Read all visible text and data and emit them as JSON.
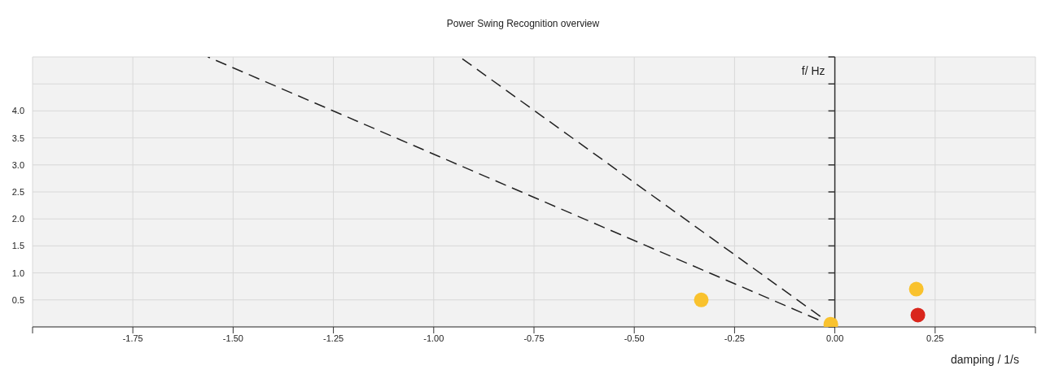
{
  "chart_data": {
    "type": "scatter",
    "title": "Power Swing Recognition overview",
    "xlabel": "damping / 1/s",
    "ylabel": "f/ Hz",
    "xlim": [
      -2,
      0.5
    ],
    "ylim": [
      0,
      5
    ],
    "xticks": [
      {
        "value": -2,
        "label": null
      },
      {
        "value": -1.75,
        "label": "-1.75"
      },
      {
        "value": -1.5,
        "label": "-1.50"
      },
      {
        "value": -1.25,
        "label": "-1.25"
      },
      {
        "value": -1,
        "label": "-1.00"
      },
      {
        "value": -0.75,
        "label": "-0.75"
      },
      {
        "value": -0.5,
        "label": "-0.50"
      },
      {
        "value": -0.25,
        "label": "-0.25"
      },
      {
        "value": 0,
        "label": "0.00"
      },
      {
        "value": 0.25,
        "label": "0.25"
      },
      {
        "value": 0.5,
        "label": null
      }
    ],
    "yticks": [
      {
        "value": 0,
        "label": null
      },
      0.5,
      {
        "value": 1,
        "label": "1.0"
      },
      1.5,
      {
        "value": 2,
        "label": "2.0"
      },
      2.5,
      {
        "value": 3,
        "label": "3.0"
      },
      3.5,
      {
        "value": 4,
        "label": "4.0"
      },
      {
        "value": 4.5,
        "label": null
      },
      {
        "value": 5,
        "label": null
      }
    ],
    "grid": true,
    "marker": "circle",
    "series": [
      {
        "type": "line",
        "color": "#222222",
        "line_style": "dashed",
        "marker": "none",
        "x": [
          0,
          -0.935
        ],
        "values": [
          0,
          5
        ]
      },
      {
        "type": "line",
        "color": "#222222",
        "line_style": "dashed",
        "marker": "none",
        "x": [
          0,
          -1.563
        ],
        "values": [
          0,
          5
        ]
      },
      {
        "color": "#f9c22e",
        "x": [
          -0.333,
          0.203,
          -0.01
        ],
        "values": [
          0.5,
          0.7,
          0.05
        ]
      },
      {
        "color": "#d9261c",
        "x": [
          0.207
        ],
        "values": [
          0.22
        ]
      }
    ]
  }
}
